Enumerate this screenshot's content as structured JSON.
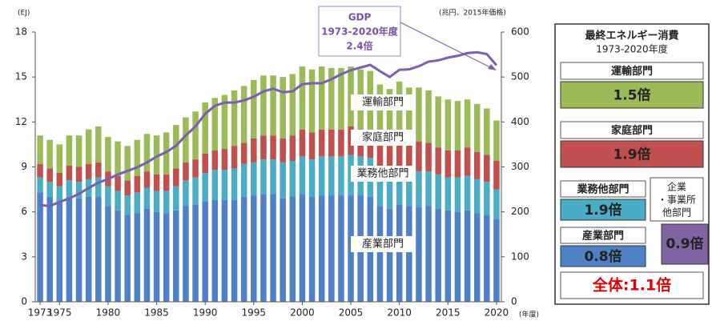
{
  "chart_data": {
    "type": "bar",
    "stacked": true,
    "ylabel": "(EJ)",
    "y2label": "(兆円、2015年価格)",
    "xlabel": "(年度)",
    "x": [
      1973,
      1974,
      1975,
      1976,
      1977,
      1978,
      1979,
      1980,
      1981,
      1982,
      1983,
      1984,
      1985,
      1986,
      1987,
      1988,
      1989,
      1990,
      1991,
      1992,
      1993,
      1994,
      1995,
      1996,
      1997,
      1998,
      1999,
      2000,
      2001,
      2002,
      2003,
      2004,
      2005,
      2006,
      2007,
      2008,
      2009,
      2010,
      2011,
      2012,
      2013,
      2014,
      2015,
      2016,
      2017,
      2018,
      2019,
      2020
    ],
    "xlim": [
      1972.5,
      2020.5
    ],
    "xticks": [
      1973,
      1975,
      1980,
      1985,
      1990,
      1995,
      2000,
      2005,
      2010,
      2015,
      2020
    ],
    "ylim": [
      0,
      18
    ],
    "yticks": [
      0,
      3,
      6,
      9,
      12,
      15,
      18
    ],
    "y2lim": [
      0,
      600
    ],
    "y2ticks": [
      0,
      100,
      200,
      300,
      400,
      500,
      600
    ],
    "series": [
      {
        "name": "産業部門",
        "color": "#4f81c7",
        "values": [
          7.3,
          7.0,
          6.6,
          7.0,
          6.9,
          7.0,
          7.0,
          6.4,
          6.1,
          5.8,
          5.9,
          6.2,
          6.0,
          5.9,
          6.1,
          6.4,
          6.5,
          6.7,
          6.8,
          6.8,
          6.8,
          7.0,
          7.1,
          7.2,
          7.2,
          6.9,
          7.0,
          7.2,
          7.0,
          7.1,
          7.1,
          7.1,
          7.1,
          7.1,
          7.0,
          6.4,
          6.2,
          6.5,
          6.4,
          6.3,
          6.4,
          6.2,
          6.1,
          6.0,
          6.1,
          5.9,
          5.8,
          5.5
        ]
      },
      {
        "name": "業務他部門",
        "color": "#4bacc6",
        "values": [
          1.0,
          1.0,
          1.1,
          1.1,
          1.1,
          1.2,
          1.3,
          1.3,
          1.3,
          1.3,
          1.4,
          1.4,
          1.4,
          1.5,
          1.6,
          1.7,
          1.8,
          1.9,
          2.0,
          2.0,
          2.1,
          2.2,
          2.2,
          2.3,
          2.3,
          2.4,
          2.4,
          2.5,
          2.5,
          2.6,
          2.6,
          2.6,
          2.7,
          2.6,
          2.6,
          2.5,
          2.4,
          2.5,
          2.3,
          2.4,
          2.3,
          2.3,
          2.2,
          2.3,
          2.3,
          2.3,
          2.2,
          2.0
        ]
      },
      {
        "name": "家庭部門",
        "color": "#c0504d",
        "values": [
          0.9,
          0.9,
          0.9,
          1.0,
          1.0,
          1.0,
          1.0,
          1.0,
          1.0,
          1.0,
          1.1,
          1.1,
          1.1,
          1.1,
          1.2,
          1.2,
          1.2,
          1.3,
          1.3,
          1.4,
          1.5,
          1.4,
          1.6,
          1.6,
          1.6,
          1.6,
          1.7,
          1.8,
          1.8,
          1.8,
          1.8,
          1.8,
          1.9,
          1.8,
          1.9,
          1.8,
          1.8,
          1.9,
          1.9,
          2.0,
          1.9,
          1.8,
          1.8,
          1.8,
          1.9,
          1.8,
          1.8,
          1.9
        ]
      },
      {
        "name": "運輸部門",
        "color": "#9bbb59",
        "values": [
          1.9,
          1.9,
          1.9,
          2.0,
          2.1,
          2.3,
          2.4,
          2.3,
          2.3,
          2.3,
          2.4,
          2.5,
          2.6,
          2.8,
          2.9,
          3.0,
          3.2,
          3.4,
          3.5,
          3.6,
          3.7,
          3.8,
          3.9,
          4.0,
          4.0,
          4.1,
          4.1,
          4.2,
          4.2,
          4.2,
          4.1,
          4.1,
          4.0,
          4.0,
          3.9,
          3.8,
          3.8,
          3.8,
          3.7,
          3.6,
          3.5,
          3.4,
          3.4,
          3.3,
          3.2,
          3.2,
          3.1,
          2.7
        ]
      },
      {
        "name": "GDP",
        "type": "line",
        "axis": "y2",
        "color": "#7a5fb0",
        "values": [
          215,
          213,
          222,
          230,
          240,
          253,
          265,
          273,
          283,
          291,
          299,
          310,
          323,
          333,
          347,
          370,
          390,
          418,
          436,
          443,
          443,
          448,
          456,
          468,
          474,
          466,
          468,
          484,
          486,
          486,
          495,
          506,
          515,
          521,
          527,
          513,
          500,
          516,
          517,
          524,
          534,
          537,
          543,
          547,
          553,
          555,
          551,
          526
        ]
      }
    ],
    "annotation": [
      "1973-2020年度",
      "2.4倍"
    ]
  },
  "summary_panel": {
    "title": [
      "最終エネルギー消費",
      "1973-2020年度"
    ],
    "items": [
      {
        "label": "運輸部門",
        "ratio": "1.5倍"
      },
      {
        "label": "家庭部門",
        "ratio": "1.9倍"
      },
      {
        "label": "業務他部門",
        "ratio": "1.9倍"
      },
      {
        "label": "産業部門",
        "ratio": "0.8倍"
      }
    ],
    "group": {
      "label": [
        "企業",
        "・事業所",
        "他部門"
      ],
      "ratio": "0.9倍"
    },
    "total": "全体:1.1倍"
  }
}
